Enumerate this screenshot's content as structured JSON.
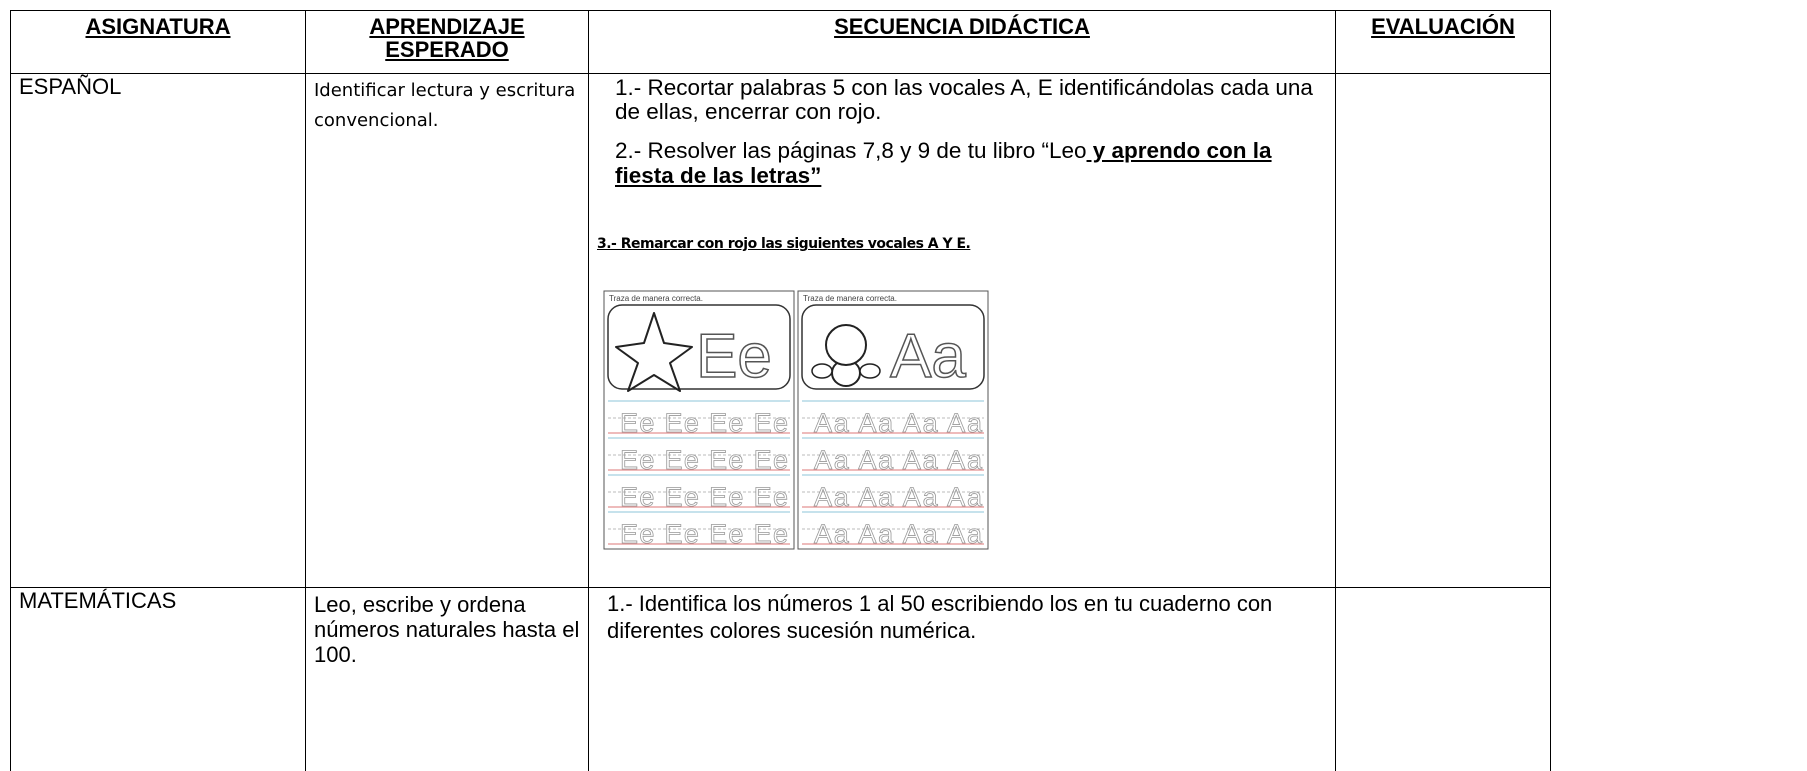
{
  "table": {
    "header": [
      "ASIGNATURA",
      "APRENDIZAJE ESPERADO",
      "SECUENCIA DIDÁCTICA",
      "EVALUACIÓN"
    ],
    "rows": [
      {
        "subject": "ESPAÑOL",
        "learning": "Identificar lectura y escritura convencional.",
        "sequence": {
          "item1": "1.- Recortar palabras 5 con las vocales A, E identificándolas cada una de ellas, encerrar con rojo.",
          "item2": {
            "text": "2.- Resolver las páginas 7,8 y 9 de tu libro “Leo",
            "emphasis": " y aprendo con la fiesta de las letras”"
          },
          "item3": "3.- Remarcar con rojo las siguientes vocales A Y E.",
          "worksheets": [
            {
              "label": "Traza de manera correcta.",
              "letter": "Ee",
              "trace_rows": [
                "Ee Ee Ee Ee",
                "Ee Ee Ee Ee",
                "Ee Ee Ee Ee",
                "Ee Ee Ee Ee"
              ]
            },
            {
              "label": "Traza de manera correcta.",
              "letter": "Aa",
              "trace_rows": [
                "Aa Aa Aa Aa",
                "Aa Aa Aa Aa",
                "Aa Aa Aa Aa",
                "Aa Aa Aa Aa"
              ]
            }
          ]
        }
      },
      {
        "subject": "MATEMÁTICAS",
        "learning": "Leo, escribe y ordena números naturales hasta el 100.",
        "sequence": {
          "item1": "1.- Identifica los números 1 al 50 escribiendo los en tu cuaderno con diferentes colores sucesión numérica."
        }
      }
    ]
  }
}
